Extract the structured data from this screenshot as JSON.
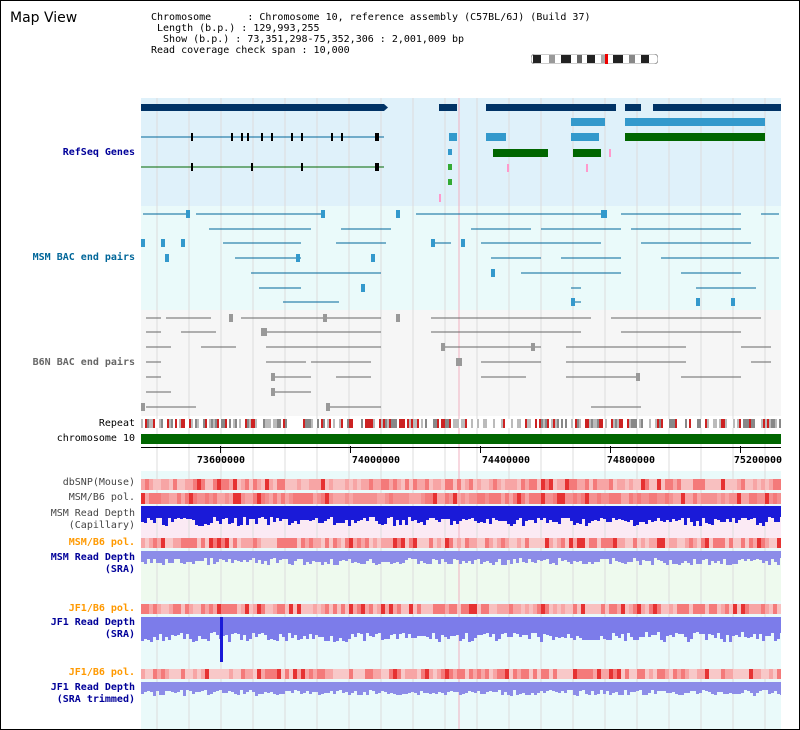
{
  "header": {
    "title": "Map View",
    "info_lines": [
      "Chromosome      : Chromosome 10, reference assembly (C57BL/6J) (Build 37)",
      " Length (b.p.) : 129,993,255",
      "  Show (b.p.) : 73,351,298-75,352,306 : 2,001,009 bp",
      "Read coverage check span : 10,000"
    ]
  },
  "tracks": {
    "refseq": {
      "label": "RefSeq Genes",
      "color": "#000099",
      "bg": "#dff1fa"
    },
    "msm_bac": {
      "label": "MSM BAC end pairs",
      "color": "#006699",
      "bg": "#eafafa"
    },
    "b6n_bac": {
      "label": "B6N BAC end pairs",
      "color": "#666666",
      "bg": "#f5f5f5"
    },
    "repeat": {
      "label": "Repeat"
    },
    "chromosome": {
      "label": "chromosome 10",
      "color": "#006600"
    },
    "dbsnp": {
      "label": "dbSNP(Mouse)",
      "color": "#444444"
    },
    "msm_b6_pol": {
      "label": "MSM/B6 pol.",
      "color": "#444444"
    },
    "msm_depth_cap": {
      "label": "MSM Read Depth\n(Capillary)",
      "color": "#444444"
    },
    "msm_b6_pol2": {
      "label": "MSM/B6 pol.",
      "color": "#ff9900"
    },
    "msm_depth_sra": {
      "label": "MSM Read Depth\n(SRA)",
      "color": "#000099"
    },
    "jf1_b6_pol": {
      "label": "JF1/B6 pol.",
      "color": "#ff9900"
    },
    "jf1_depth_sra": {
      "label": "JF1 Read Depth\n(SRA)",
      "color": "#000099"
    },
    "jf1_b6_pol2": {
      "label": "JF1/B6 pol.",
      "color": "#ff9900"
    },
    "jf1_depth_trim": {
      "label": "JF1 Read Depth\n(SRA trimmed)",
      "color": "#000099"
    }
  },
  "axis": {
    "ticks": [
      "73600000",
      "74000000",
      "74400000",
      "74800000",
      "75200000"
    ]
  }
}
